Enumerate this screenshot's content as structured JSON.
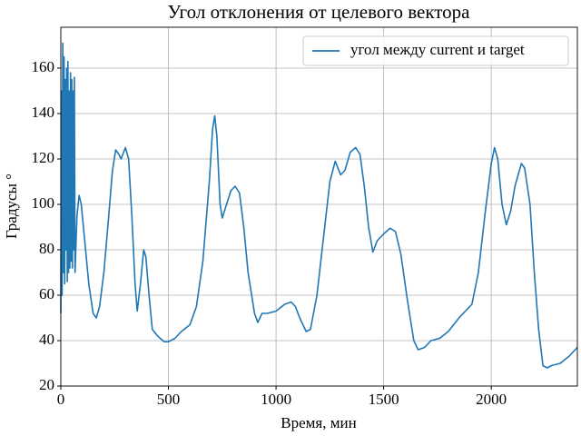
{
  "chart_data": {
    "type": "line",
    "title": "Угол отклонения от целевого вектора",
    "xlabel": "Время, мин",
    "ylabel": "Градусы °",
    "x": [
      0,
      3,
      6,
      9,
      12,
      15,
      18,
      21,
      24,
      27,
      30,
      33,
      36,
      39,
      42,
      45,
      48,
      51,
      54,
      57,
      60,
      63,
      66,
      75,
      85,
      95,
      110,
      130,
      150,
      165,
      180,
      200,
      220,
      240,
      255,
      270,
      280,
      300,
      315,
      330,
      345,
      355,
      370,
      385,
      395,
      410,
      425,
      450,
      480,
      500,
      530,
      560,
      600,
      630,
      660,
      690,
      705,
      715,
      725,
      740,
      750,
      770,
      790,
      810,
      830,
      850,
      870,
      900,
      915,
      935,
      960,
      1000,
      1040,
      1070,
      1090,
      1110,
      1140,
      1160,
      1190,
      1220,
      1250,
      1275,
      1300,
      1320,
      1345,
      1370,
      1390,
      1410,
      1430,
      1450,
      1470,
      1500,
      1530,
      1555,
      1580,
      1610,
      1640,
      1660,
      1690,
      1720,
      1760,
      1800,
      1850,
      1880,
      1910,
      1940,
      1970,
      2000,
      2015,
      2030,
      2050,
      2070,
      2090,
      2110,
      2140,
      2155,
      2180,
      2200,
      2220,
      2240,
      2260,
      2280,
      2320,
      2360,
      2400
    ],
    "series": [
      {
        "name": "угол между current и target",
        "color": "#1f77b4",
        "values": [
          52,
          150,
          60,
          171,
          70,
          165,
          65,
          155,
          80,
          160,
          66,
          163,
          70,
          150,
          72,
          158,
          75,
          155,
          72,
          150,
          80,
          156,
          70,
          95,
          104,
          100,
          85,
          65,
          52,
          50,
          55,
          70,
          92,
          115,
          124,
          122,
          120,
          125,
          120,
          95,
          65,
          53,
          65,
          80,
          77,
          60,
          45,
          42,
          39.5,
          39.5,
          41,
          44,
          47,
          55,
          75,
          110,
          133,
          139,
          130,
          100,
          94,
          100,
          106,
          108,
          105,
          90,
          70,
          52,
          48,
          52,
          52,
          53,
          56,
          57,
          55,
          50,
          44,
          45,
          60,
          85,
          110,
          119,
          113,
          115,
          123,
          125,
          122,
          108,
          90,
          79,
          84,
          87,
          89.5,
          88,
          78,
          58,
          40,
          36,
          37,
          40,
          41,
          44,
          50,
          53,
          56,
          70,
          95,
          118,
          125,
          120,
          100,
          91,
          97,
          108,
          118,
          116,
          100,
          70,
          45,
          29,
          28,
          29,
          30,
          33,
          37
        ]
      }
    ],
    "xlim": [
      0,
      2400
    ],
    "ylim": [
      20,
      178
    ],
    "xticks": [
      0,
      500,
      1000,
      1500,
      2000
    ],
    "yticks": [
      20,
      40,
      60,
      80,
      100,
      120,
      140,
      160
    ],
    "grid": true,
    "legend": "upper right"
  }
}
